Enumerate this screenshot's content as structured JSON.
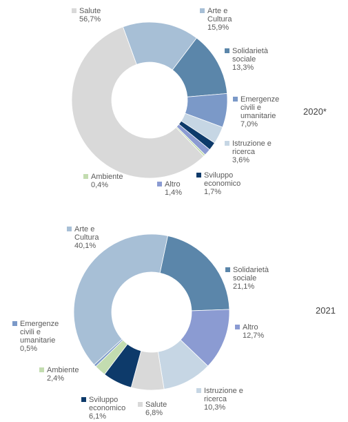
{
  "chart_data": [
    {
      "type": "donut",
      "title": "2020*",
      "categories": [
        "Arte e\nCultura",
        "Solidarietà\nsociale",
        "Emergenze\ncivili e\numanitarie",
        "Istruzione e\nricerca",
        "Sviluppo\neconomico",
        "Altro",
        "Ambiente",
        "Salute"
      ],
      "values": [
        15.9,
        13.3,
        7.0,
        3.6,
        1.7,
        1.4,
        0.4,
        56.7
      ],
      "value_labels": [
        "15,9%",
        "13,3%",
        "7,0%",
        "3,6%",
        "1,7%",
        "1,4%",
        "0,4%",
        "56,7%"
      ],
      "colors": [
        "#a7bfd6",
        "#5b86aa",
        "#7b99c8",
        "#c6d6e4",
        "#0d3a6a",
        "#8b9bd2",
        "#c3dcb0",
        "#d9d9d9"
      ]
    },
    {
      "type": "donut",
      "title": "2021",
      "categories": [
        "Solidarietà\nsociale",
        "Altro",
        "Istruzione e\nricerca",
        "Salute",
        "Sviluppo\neconomico",
        "Ambiente",
        "Emergenze\ncivili e\numanitarie",
        "Arte e\nCultura"
      ],
      "values": [
        21.1,
        12.7,
        10.3,
        6.8,
        6.1,
        2.4,
        0.5,
        40.1
      ],
      "value_labels": [
        "21,1%",
        "12,7%",
        "10,3%",
        "6,8%",
        "6,1%",
        "2,4%",
        "0,5%",
        "40,1%"
      ],
      "colors": [
        "#5b86aa",
        "#8b9bd2",
        "#c6d6e4",
        "#d9d9d9",
        "#0d3a6a",
        "#c3dcb0",
        "#7b99c8",
        "#a7bfd6"
      ]
    }
  ]
}
